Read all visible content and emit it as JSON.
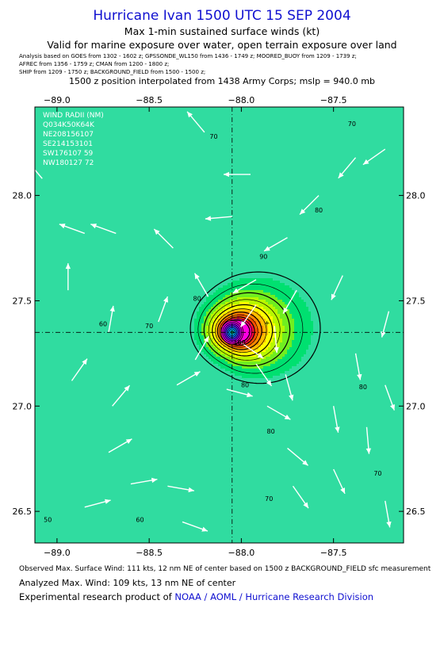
{
  "header": {
    "title": "Hurricane Ivan 1500 UTC 15 SEP 2004",
    "subtitle1": "Max 1-min sustained surface winds (kt)",
    "subtitle2": "Valid for marine exposure over water, open terrain exposure over land",
    "analysis_lines": [
      "Analysis based on  GOES from 1302 - 1602 z;  GPSSONDE_WL150 from 1436 - 1749 z;  MOORED_BUOY from 1209 - 1739 z;",
      "AFREC from 1356 - 1759 z;  CMAN from 1200 - 1800 z;",
      "SHIP from 1209 - 1750 z;  BACKGROUND_FIELD from 1500 - 1500 z;"
    ],
    "position_note": "1500 z position interpolated from 1438 Army Corps; mslp = 940.0 mb"
  },
  "footer": {
    "observed": "Observed Max. Surface Wind: 111 kts, 12 nm NE of center based on 1500 z BACKGROUND_FIELD sfc measurement",
    "analyzed": "Analyzed Max. Wind: 109 kts, 13 nm NE of center",
    "experimental_prefix": "Experimental research product of",
    "organization": "NOAA / AOML / Hurricane Research Division"
  },
  "chart_data": {
    "type": "heatmap",
    "xlim": [
      -89.12,
      -87.12
    ],
    "ylim": [
      26.35,
      28.42
    ],
    "x_ticks": [
      -89.0,
      -88.5,
      -88.0,
      -87.5
    ],
    "x_tick_labels": [
      "−89.0",
      "−88.5",
      "−88.0",
      "−87.5"
    ],
    "y_ticks": [
      26.5,
      27.0,
      27.5,
      28.0
    ],
    "y_tick_labels": [
      "26.5",
      "27.0",
      "27.5",
      "28.0"
    ],
    "center": {
      "lon": -88.05,
      "lat": 27.35
    },
    "contour_levels": [
      50,
      55,
      60,
      65,
      70,
      75,
      80,
      85,
      90,
      95,
      100
    ],
    "contour_labels": [
      {
        "text": "50",
        "lon": -89.05,
        "lat": 26.45
      },
      {
        "text": "60",
        "lon": -88.55,
        "lat": 26.45
      },
      {
        "text": "60",
        "lon": -88.75,
        "lat": 27.38
      },
      {
        "text": "70",
        "lon": -88.5,
        "lat": 27.37
      },
      {
        "text": "70",
        "lon": -88.15,
        "lat": 28.27
      },
      {
        "text": "70",
        "lon": -87.85,
        "lat": 26.55
      },
      {
        "text": "70",
        "lon": -87.26,
        "lat": 26.67
      },
      {
        "text": "70",
        "lon": -87.4,
        "lat": 28.33
      },
      {
        "text": "80",
        "lon": -87.58,
        "lat": 27.92
      },
      {
        "text": "80",
        "lon": -88.24,
        "lat": 27.5
      },
      {
        "text": "80",
        "lon": -87.98,
        "lat": 27.09
      },
      {
        "text": "80",
        "lon": -87.84,
        "lat": 26.87
      },
      {
        "text": "80",
        "lon": -87.34,
        "lat": 27.08
      },
      {
        "text": "90",
        "lon": -87.88,
        "lat": 27.7
      },
      {
        "text": "100",
        "lon": -88.01,
        "lat": 27.29
      }
    ],
    "colorbands": [
      {
        "min": 0,
        "color": "#30dca0"
      },
      {
        "min": 52,
        "color": "#00e070"
      },
      {
        "min": 58,
        "color": "#70ee20"
      },
      {
        "min": 63,
        "color": "#b8f800"
      },
      {
        "min": 68,
        "color": "#ffff00"
      },
      {
        "min": 74,
        "color": "#ffbe00"
      },
      {
        "min": 79,
        "color": "#ff8800"
      },
      {
        "min": 85,
        "color": "#ff5000"
      },
      {
        "min": 91,
        "color": "#ff0040"
      },
      {
        "min": 96,
        "color": "#ff00a0"
      },
      {
        "min": 101,
        "color": "#ff00e0"
      }
    ],
    "inset": {
      "header": "WIND RADII (NM)",
      "rows": [
        "Q034K50K64K",
        "NE208156107",
        "SE214153101",
        "SW176107 59",
        "NW180127 72"
      ]
    },
    "wind_vectors": [
      {
        "lon": -89.08,
        "lat": 28.08,
        "angle": 320
      },
      {
        "lon": -88.85,
        "lat": 27.82,
        "angle": 290
      },
      {
        "lon": -88.68,
        "lat": 27.82,
        "angle": 290
      },
      {
        "lon": -88.37,
        "lat": 27.75,
        "angle": 315
      },
      {
        "lon": -88.94,
        "lat": 27.55,
        "angle": 0
      },
      {
        "lon": -88.72,
        "lat": 27.35,
        "angle": 10
      },
      {
        "lon": -88.45,
        "lat": 27.4,
        "angle": 20
      },
      {
        "lon": -88.92,
        "lat": 27.12,
        "angle": 35
      },
      {
        "lon": -88.7,
        "lat": 27.0,
        "angle": 40
      },
      {
        "lon": -88.72,
        "lat": 26.78,
        "angle": 60
      },
      {
        "lon": -88.85,
        "lat": 26.52,
        "angle": 75
      },
      {
        "lon": -88.6,
        "lat": 26.63,
        "angle": 80
      },
      {
        "lon": -88.4,
        "lat": 26.62,
        "angle": 100
      },
      {
        "lon": -88.32,
        "lat": 26.45,
        "angle": 110
      },
      {
        "lon": -88.18,
        "lat": 27.52,
        "angle": 330
      },
      {
        "lon": -88.25,
        "lat": 27.22,
        "angle": 30
      },
      {
        "lon": -88.35,
        "lat": 27.1,
        "angle": 60
      },
      {
        "lon": -88.2,
        "lat": 28.3,
        "angle": 320
      },
      {
        "lon": -87.95,
        "lat": 28.1,
        "angle": 270
      },
      {
        "lon": -88.05,
        "lat": 27.9,
        "angle": 265
      },
      {
        "lon": -87.75,
        "lat": 27.8,
        "angle": 240
      },
      {
        "lon": -87.58,
        "lat": 28.0,
        "angle": 225
      },
      {
        "lon": -87.38,
        "lat": 28.18,
        "angle": 220
      },
      {
        "lon": -87.22,
        "lat": 28.22,
        "angle": 235
      },
      {
        "lon": -87.92,
        "lat": 27.6,
        "angle": 240
      },
      {
        "lon": -87.7,
        "lat": 27.55,
        "angle": 210
      },
      {
        "lon": -87.45,
        "lat": 27.62,
        "angle": 205
      },
      {
        "lon": -87.2,
        "lat": 27.45,
        "angle": 195
      },
      {
        "lon": -87.38,
        "lat": 27.25,
        "angle": 170
      },
      {
        "lon": -87.22,
        "lat": 27.1,
        "angle": 160
      },
      {
        "lon": -87.32,
        "lat": 26.9,
        "angle": 175
      },
      {
        "lon": -87.22,
        "lat": 26.55,
        "angle": 170
      },
      {
        "lon": -87.5,
        "lat": 26.7,
        "angle": 155
      },
      {
        "lon": -87.72,
        "lat": 26.62,
        "angle": 145
      },
      {
        "lon": -87.75,
        "lat": 26.8,
        "angle": 130
      },
      {
        "lon": -87.86,
        "lat": 27.0,
        "angle": 120
      },
      {
        "lon": -87.92,
        "lat": 27.2,
        "angle": 145
      },
      {
        "lon": -87.76,
        "lat": 27.15,
        "angle": 165
      },
      {
        "lon": -87.5,
        "lat": 27.0,
        "angle": 170
      },
      {
        "lon": -88.08,
        "lat": 27.08,
        "angle": 105
      },
      {
        "lon": -88.0,
        "lat": 27.3,
        "angle": 125
      },
      {
        "lon": -87.82,
        "lat": 27.38,
        "angle": 175
      },
      {
        "lon": -87.92,
        "lat": 27.48,
        "angle": 215
      }
    ]
  }
}
